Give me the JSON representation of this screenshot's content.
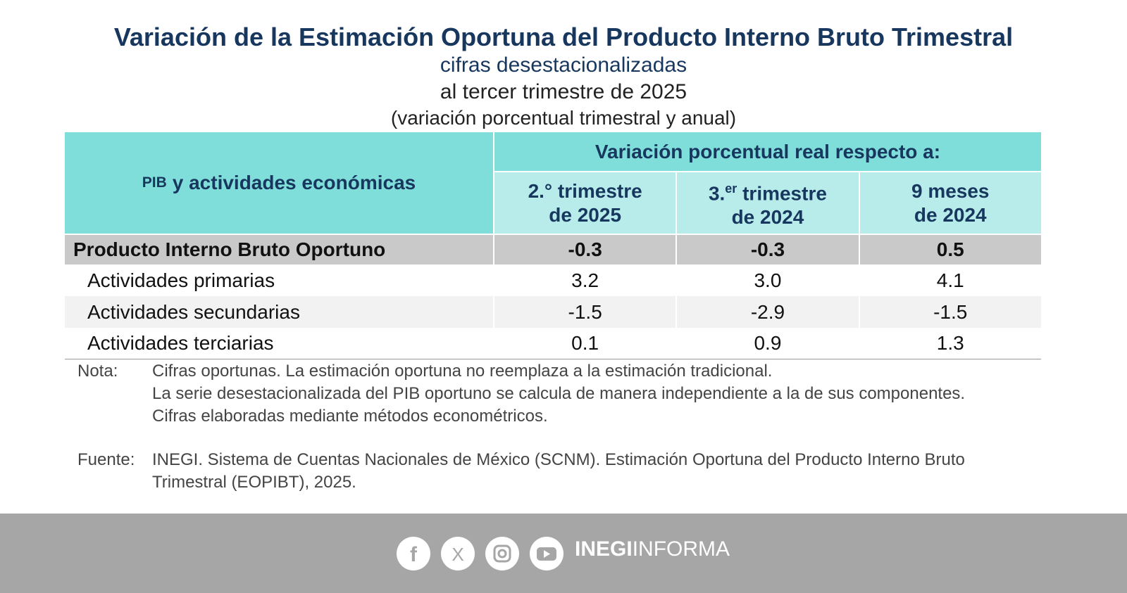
{
  "header": {
    "title": "Variación de la Estimación Oportuna del Producto Interno Bruto Trimestral",
    "subtitle": "cifras desestacionalizadas",
    "period": "al tercer trimestre de 2025",
    "units": "(variación porcentual trimestral y anual)"
  },
  "table": {
    "row_header_prefix": "PIB",
    "row_header": "y actividades económicas",
    "group_header": "Variación porcentual real respecto a:",
    "columns": [
      {
        "main": "2.° trimestre",
        "sup": "",
        "line2": "de 2025"
      },
      {
        "main": "3.",
        "sup": "er",
        "rest": " trimestre",
        "line2": "de 2024"
      },
      {
        "main": "9 meses",
        "sup": "",
        "line2": "de 2024"
      }
    ],
    "rows": [
      [
        "Producto Interno Bruto Oportuno",
        "-0.3",
        "-0.3",
        "0.5"
      ],
      [
        "Actividades primarias",
        "3.2",
        "3.0",
        "4.1"
      ],
      [
        "Actividades secundarias",
        "-1.5",
        "-2.9",
        "-1.5"
      ],
      [
        "Actividades terciarias",
        "0.1",
        "0.9",
        "1.3"
      ]
    ]
  },
  "notes": {
    "label": "Nota:",
    "lines": [
      "Cifras oportunas. La estimación oportuna no reemplaza a la estimación tradicional.",
      "La serie desestacionalizada del PIB oportuno se calcula de manera independiente a la de sus componentes.",
      "Cifras elaboradas mediante métodos econométricos."
    ]
  },
  "source": {
    "label": "Fuente:",
    "text": "INEGI. Sistema de Cuentas Nacionales de México (SCNM). Estimación Oportuna del Producto Interno Bruto Trimestral (EOPIBT), 2025."
  },
  "footer": {
    "brand_bold": "INEGI",
    "brand_light": "INFORMA"
  }
}
